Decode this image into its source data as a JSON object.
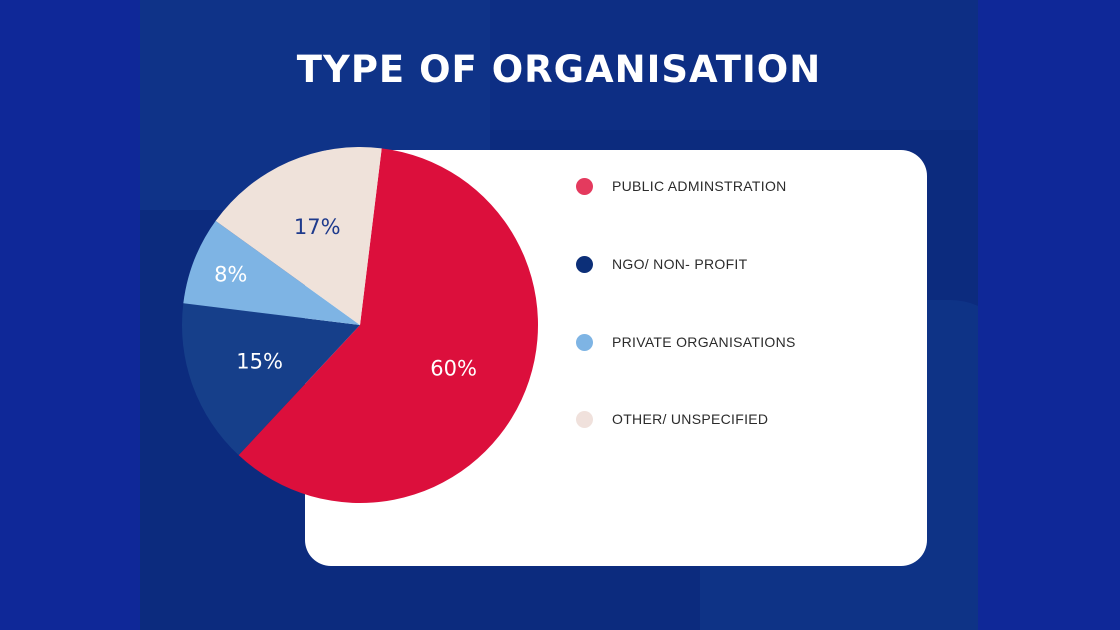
{
  "page": {
    "background_color": "#0f2898",
    "panel_color": "#0c2b7e"
  },
  "chart_data": {
    "type": "pie",
    "title": "TYPE OF ORGANISATION",
    "slices": [
      {
        "label": "PUBLIC ADMINSTRATION",
        "value": 60,
        "display": "60%",
        "color": "#dc0f3c",
        "text_color": "#ffffff"
      },
      {
        "label": "NGO/ NON- PROFIT",
        "value": 15,
        "display": "15%",
        "color": "#163f8a",
        "text_color": "#ffffff"
      },
      {
        "label": "PRIVATE ORGANISATIONS",
        "value": 8,
        "display": "8%",
        "color": "#7eb4e4",
        "text_color": "#ffffff"
      },
      {
        "label": "OTHER/ UNSPECIFIED",
        "value": 17,
        "display": "17%",
        "color": "#efe2da",
        "text_color": "#1e3a8c"
      }
    ],
    "legend": {
      "placement": "right",
      "dot_colors": [
        "#e43a5e",
        "#0c2f78",
        "#7eb4e4",
        "#f0e1dc"
      ]
    }
  }
}
